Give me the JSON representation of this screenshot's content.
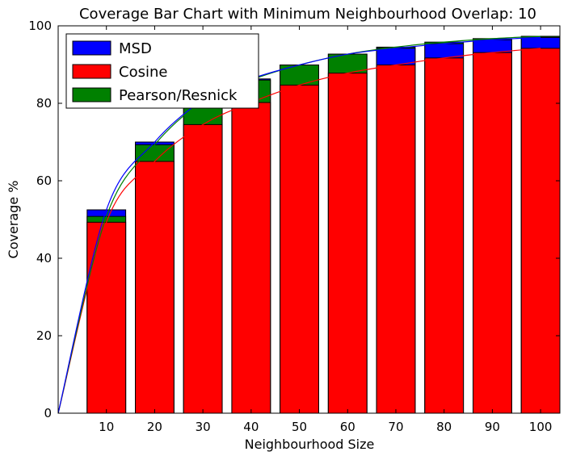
{
  "chart_data": {
    "type": "bar",
    "title": "Coverage Bar Chart with Minimum Neighbourhood Overlap: 10",
    "xlabel": "Neighbourhood Size",
    "ylabel": "Coverage %",
    "categories": [
      "10",
      "20",
      "30",
      "40",
      "50",
      "60",
      "70",
      "80",
      "90",
      "100"
    ],
    "x": [
      10,
      20,
      30,
      40,
      50,
      60,
      70,
      80,
      90,
      100
    ],
    "xlim": [
      0,
      104
    ],
    "ylim": [
      0,
      100
    ],
    "yticks": [
      0,
      20,
      40,
      60,
      80,
      100
    ],
    "yticks_labels": [
      "0",
      "20",
      "40",
      "60",
      "80",
      "100"
    ],
    "grid": false,
    "legend_position": "top-left",
    "series": [
      {
        "name": "MSD",
        "color": "#0000ff",
        "values": [
          52.5,
          70.0,
          80.8,
          86.3,
          89.9,
          92.7,
          94.2,
          95.4,
          96.4,
          97.0
        ]
      },
      {
        "name": "Cosine",
        "color": "#ff0000",
        "values": [
          49.3,
          65.0,
          74.5,
          80.2,
          84.7,
          87.8,
          89.9,
          91.7,
          93.1,
          94.2
        ]
      },
      {
        "name": "Pearson/Resnick",
        "color": "#008000",
        "values": [
          50.8,
          69.3,
          80.5,
          86.0,
          89.9,
          92.7,
          94.5,
          95.8,
          96.7,
          97.3
        ]
      }
    ],
    "line_start": {
      "x": 0,
      "y": 0
    }
  }
}
